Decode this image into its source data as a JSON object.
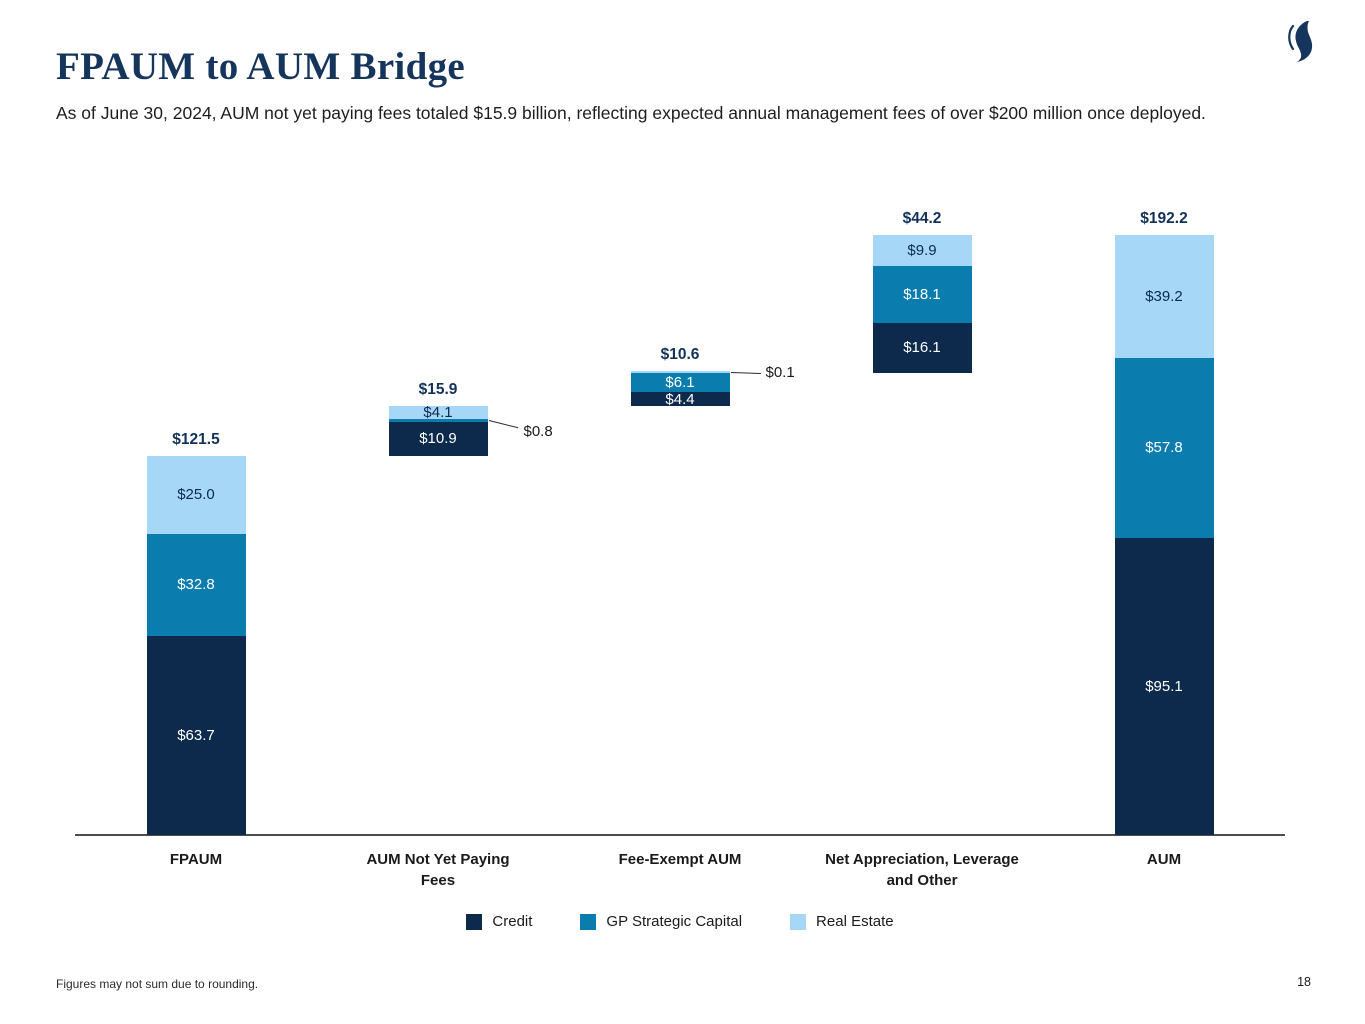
{
  "header": {
    "title": "FPAUM to AUM Bridge",
    "subtitle": "As of June 30, 2024, AUM not yet paying fees totaled $15.9 billion, reflecting expected annual management fees of over $200 million once deployed."
  },
  "footer": {
    "note": "Figures may not sum due to rounding.",
    "page": "18"
  },
  "colors": {
    "title_navy": "#16355c",
    "credit": "#0d2a4d",
    "gp_strategic_capital": "#0a7cae",
    "real_estate": "#a6d7f7",
    "total_label": "#12325a"
  },
  "chart_data": {
    "type": "bar",
    "subtype": "stacked_waterfall_bridge",
    "unit": "USD billions",
    "ylim": [
      0,
      200
    ],
    "grid": false,
    "legend_position": "bottom",
    "series_names": [
      "Credit",
      "GP Strategic Capital",
      "Real Estate"
    ],
    "series_colors": {
      "Credit": "#0d2a4d",
      "GP Strategic Capital": "#0a7cae",
      "Real Estate": "#a6d7f7"
    },
    "series_label_colors": {
      "Credit": "#ffffff",
      "GP Strategic Capital": "#ffffff",
      "Real Estate": "#0d2a4d"
    },
    "legend": [
      "Credit",
      "GP Strategic Capital",
      "Real Estate"
    ],
    "bars": [
      {
        "label_lines": [
          "FPAUM"
        ],
        "total_label": "$121.5",
        "total": 121.5,
        "base": 0,
        "segments": [
          {
            "series": "Credit",
            "value": 63.7,
            "label": "$63.7"
          },
          {
            "series": "GP Strategic Capital",
            "value": 32.8,
            "label": "$32.8"
          },
          {
            "series": "Real Estate",
            "value": 25.0,
            "label": "$25.0"
          }
        ]
      },
      {
        "label_lines": [
          "AUM Not Yet Paying",
          "Fees"
        ],
        "total_label": "$15.9",
        "total": 15.9,
        "base": 121.5,
        "segments": [
          {
            "series": "Credit",
            "value": 10.9,
            "label": "$10.9"
          },
          {
            "series": "GP Strategic Capital",
            "value": 0.8,
            "label": "$0.8",
            "callout": true,
            "callout_angle": 14,
            "callout_dy": 3
          },
          {
            "series": "Real Estate",
            "value": 4.1,
            "label": "$4.1"
          }
        ]
      },
      {
        "label_lines": [
          "Fee-Exempt AUM"
        ],
        "total_label": "$10.6",
        "total": 10.6,
        "base": 137.4,
        "segments": [
          {
            "series": "Credit",
            "value": 4.4,
            "label": "$4.4"
          },
          {
            "series": "GP Strategic Capital",
            "value": 6.1,
            "label": "$6.1"
          },
          {
            "series": "Real Estate",
            "value": 0.1,
            "label": "$0.1",
            "callout": true,
            "callout_angle": 2,
            "callout_dy": -8
          }
        ]
      },
      {
        "label_lines": [
          "Net Appreciation, Leverage",
          "and Other"
        ],
        "total_label": "$44.2",
        "total": 44.2,
        "base": 148.0,
        "segments": [
          {
            "series": "Credit",
            "value": 16.1,
            "label": "$16.1"
          },
          {
            "series": "GP Strategic Capital",
            "value": 18.1,
            "label": "$18.1"
          },
          {
            "series": "Real Estate",
            "value": 9.9,
            "label": "$9.9"
          }
        ]
      },
      {
        "label_lines": [
          "AUM"
        ],
        "total_label": "$192.2",
        "total": 192.2,
        "base": 0,
        "segments": [
          {
            "series": "Credit",
            "value": 95.1,
            "label": "$95.1"
          },
          {
            "series": "GP Strategic Capital",
            "value": 57.8,
            "label": "$57.8"
          },
          {
            "series": "Real Estate",
            "value": 39.2,
            "label": "$39.2"
          }
        ]
      }
    ]
  }
}
